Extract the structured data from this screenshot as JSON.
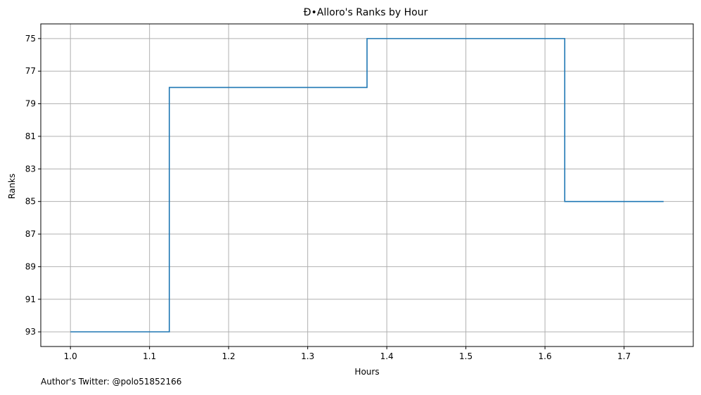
{
  "chart_data": {
    "type": "line",
    "step": "post",
    "title": "Ð•Alloro's Ranks by Hour",
    "xlabel": "Hours",
    "ylabel": "Ranks",
    "xlim": [
      0.9625,
      1.7875
    ],
    "ylim": [
      93.9,
      74.1
    ],
    "y_inverted": true,
    "grid": true,
    "xticks": [
      1.0,
      1.1,
      1.2,
      1.3,
      1.4,
      1.5,
      1.6,
      1.7
    ],
    "xtick_labels": [
      "1.0",
      "1.1",
      "1.2",
      "1.3",
      "1.4",
      "1.5",
      "1.6",
      "1.7"
    ],
    "yticks": [
      75,
      77,
      79,
      81,
      83,
      85,
      87,
      89,
      91,
      93
    ],
    "ytick_labels": [
      "75",
      "77",
      "79",
      "81",
      "83",
      "85",
      "87",
      "89",
      "91",
      "93"
    ],
    "series": [
      {
        "color": "#1f77b4",
        "x": [
          1.0,
          1.125,
          1.375,
          1.625,
          1.75
        ],
        "y": [
          93,
          78,
          75,
          85,
          85
        ]
      }
    ]
  },
  "footnote": "Author's Twitter: @polo51852166"
}
